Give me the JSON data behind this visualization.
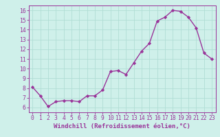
{
  "x": [
    0,
    1,
    2,
    3,
    4,
    5,
    6,
    7,
    8,
    9,
    10,
    11,
    12,
    13,
    14,
    15,
    16,
    17,
    18,
    19,
    20,
    21,
    22,
    23
  ],
  "y": [
    8.1,
    7.2,
    6.1,
    6.6,
    6.7,
    6.7,
    6.6,
    7.2,
    7.2,
    7.8,
    9.7,
    9.8,
    9.4,
    10.6,
    11.8,
    12.6,
    14.9,
    15.3,
    16.0,
    15.9,
    15.3,
    14.2,
    11.6,
    11.0
  ],
  "line_color": "#993399",
  "marker": "D",
  "marker_size": 2.2,
  "linewidth": 1.0,
  "xlabel": "Windchill (Refroidissement éolien,°C)",
  "xlabel_fontsize": 6.5,
  "xlim": [
    -0.5,
    23.5
  ],
  "ylim": [
    5.5,
    16.5
  ],
  "yticks": [
    6,
    7,
    8,
    9,
    10,
    11,
    12,
    13,
    14,
    15,
    16
  ],
  "xticks": [
    0,
    1,
    2,
    3,
    4,
    5,
    6,
    7,
    8,
    9,
    10,
    11,
    12,
    13,
    14,
    15,
    16,
    17,
    18,
    19,
    20,
    21,
    22,
    23
  ],
  "background_color": "#cff0ea",
  "grid_color": "#b0ddd5",
  "tick_fontsize": 5.8,
  "spine_color": "#993399"
}
